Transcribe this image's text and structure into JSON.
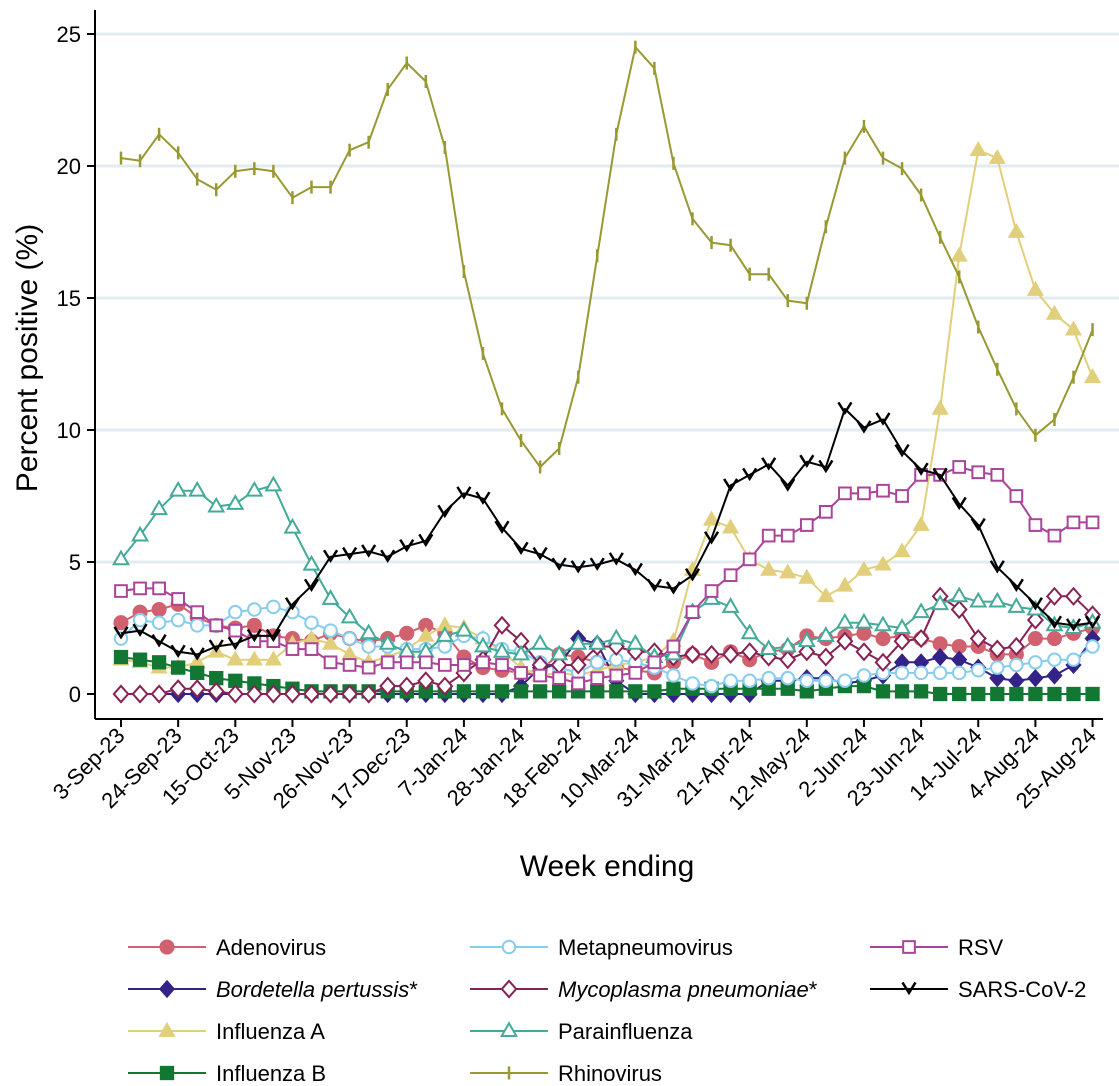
{
  "chart_data": {
    "type": "line",
    "xlabel": "Week ending",
    "ylabel": "Percent positive (%)",
    "ylim": [
      0,
      26
    ],
    "y_ticks": [
      0,
      5,
      10,
      15,
      20,
      25
    ],
    "grid": "horizontal",
    "legend_position": "bottom",
    "x": [
      "3-Sep-23",
      "10-Sep-23",
      "17-Sep-23",
      "24-Sep-23",
      "1-Oct-23",
      "8-Oct-23",
      "15-Oct-23",
      "22-Oct-23",
      "29-Oct-23",
      "5-Nov-23",
      "12-Nov-23",
      "19-Nov-23",
      "26-Nov-23",
      "3-Dec-23",
      "10-Dec-23",
      "17-Dec-23",
      "24-Dec-23",
      "31-Dec-23",
      "7-Jan-24",
      "14-Jan-24",
      "21-Jan-24",
      "28-Jan-24",
      "4-Feb-24",
      "11-Feb-24",
      "18-Feb-24",
      "25-Feb-24",
      "3-Mar-24",
      "10-Mar-24",
      "17-Mar-24",
      "24-Mar-24",
      "31-Mar-24",
      "7-Apr-24",
      "14-Apr-24",
      "21-Apr-24",
      "28-Apr-24",
      "5-May-24",
      "12-May-24",
      "19-May-24",
      "26-May-24",
      "2-Jun-24",
      "9-Jun-24",
      "16-Jun-24",
      "23-Jun-24",
      "30-Jun-24",
      "7-Jul-24",
      "14-Jul-24",
      "21-Jul-24",
      "28-Jul-24",
      "4-Aug-24",
      "11-Aug-24",
      "18-Aug-24",
      "25-Aug-24"
    ],
    "x_tick_labels": [
      "3-Sep-23",
      "24-Sep-23",
      "15-Oct-23",
      "5-Nov-23",
      "26-Nov-23",
      "17-Dec-23",
      "7-Jan-24",
      "28-Jan-24",
      "18-Feb-24",
      "10-Mar-24",
      "31-Mar-24",
      "21-Apr-24",
      "12-May-24",
      "2-Jun-24",
      "23-Jun-24",
      "14-Jul-24",
      "4-Aug-24",
      "25-Aug-24"
    ],
    "series": [
      {
        "name": "Adenovirus",
        "color": "#d1616e",
        "marker": "circle",
        "values": [
          2.7,
          3.1,
          3.2,
          3.4,
          2.9,
          2.6,
          2.5,
          2.6,
          2.2,
          2.1,
          2.0,
          2.3,
          2.1,
          2.0,
          2.1,
          2.3,
          2.6,
          2.3,
          1.4,
          1.0,
          0.9,
          0.8,
          0.9,
          1.5,
          1.4,
          1.2,
          1.0,
          0.9,
          0.8,
          1.2,
          1.5,
          1.2,
          1.6,
          1.3,
          1.6,
          1.7,
          2.2,
          2.1,
          2.2,
          2.3,
          2.1,
          2.2,
          2.1,
          1.9,
          1.8,
          1.8,
          1.5,
          1.5,
          2.1,
          2.1,
          2.3,
          2.5
        ]
      },
      {
        "name": "Bordetella pertussis*",
        "color": "#332288",
        "marker": "diamond",
        "values": [
          0,
          0,
          0,
          0,
          0,
          0,
          0,
          0,
          0,
          0,
          0,
          0,
          0,
          0,
          0,
          0,
          0,
          0,
          0,
          0,
          0,
          0.3,
          1.0,
          1.1,
          2.1,
          1.9,
          0.5,
          0,
          0,
          0,
          0,
          0,
          0,
          0,
          0.5,
          0.5,
          0.6,
          0.6,
          0.4,
          0.5,
          0.7,
          1.2,
          1.2,
          1.4,
          1.3,
          1.0,
          0.6,
          0.5,
          0.6,
          0.7,
          1.1,
          2.1
        ]
      },
      {
        "name": "Influenza A",
        "color": "#e2cf7b",
        "marker": "triangle",
        "values": [
          1.3,
          1.2,
          1.0,
          1.0,
          1.2,
          1.6,
          1.3,
          1.3,
          1.3,
          1.9,
          2.1,
          1.9,
          1.5,
          1.2,
          1.4,
          1.7,
          2.2,
          2.6,
          2.5,
          2.1,
          1.6,
          1.0,
          0.7,
          0.8,
          0.7,
          0.9,
          1.1,
          1.2,
          1.4,
          2.0,
          4.7,
          6.6,
          6.3,
          5.1,
          4.7,
          4.6,
          4.4,
          3.7,
          4.1,
          4.7,
          4.9,
          5.4,
          6.4,
          10.8,
          16.6,
          20.6,
          20.3,
          17.5,
          15.3,
          14.4,
          13.8,
          12.0
        ]
      },
      {
        "name": "Influenza B",
        "color": "#117733",
        "marker": "square",
        "values": [
          1.4,
          1.3,
          1.2,
          1.0,
          0.8,
          0.6,
          0.5,
          0.4,
          0.3,
          0.2,
          0.1,
          0.1,
          0.1,
          0.1,
          0.1,
          0.1,
          0.1,
          0.1,
          0.1,
          0.1,
          0.1,
          0.1,
          0.1,
          0.1,
          0.1,
          0.1,
          0.1,
          0.1,
          0.1,
          0.2,
          0.2,
          0.2,
          0.2,
          0.2,
          0.2,
          0.2,
          0.1,
          0.2,
          0.3,
          0.3,
          0.1,
          0.1,
          0.1,
          0,
          0,
          0,
          0,
          0,
          0,
          0,
          0,
          0
        ]
      },
      {
        "name": "Metapneumovirus",
        "color": "#88ccee",
        "marker": "circle-open",
        "values": [
          2.1,
          2.8,
          2.7,
          2.8,
          2.6,
          2.6,
          3.1,
          3.2,
          3.3,
          3.1,
          2.7,
          2.4,
          2.1,
          1.8,
          1.8,
          1.7,
          1.7,
          1.8,
          2.2,
          2.1,
          1.7,
          1.6,
          1.2,
          1.0,
          0.8,
          1.2,
          1.3,
          1.2,
          1.0,
          0.7,
          0.4,
          0.3,
          0.5,
          0.5,
          0.6,
          0.6,
          0.5,
          0.5,
          0.5,
          0.7,
          0.8,
          0.8,
          0.8,
          0.8,
          0.8,
          0.9,
          1.0,
          1.1,
          1.2,
          1.3,
          1.3,
          1.8
        ]
      },
      {
        "name": "Mycoplasma pneumoniae*",
        "color": "#882255",
        "marker": "diamond-open",
        "values": [
          0,
          0,
          0,
          0.2,
          0.2,
          0.1,
          0,
          0,
          0,
          0,
          0,
          0,
          0,
          0,
          0.3,
          0.3,
          0.5,
          0.3,
          0.8,
          1.3,
          2.6,
          2.0,
          1.1,
          1.1,
          1.1,
          1.8,
          1.8,
          1.6,
          1.6,
          1.4,
          1.5,
          1.5,
          1.5,
          1.6,
          1.4,
          1.3,
          1.6,
          1.4,
          2.0,
          1.6,
          1.2,
          2.0,
          2.1,
          3.7,
          3.2,
          2.1,
          1.7,
          1.8,
          2.8,
          3.7,
          3.7,
          3.0
        ]
      },
      {
        "name": "Parainfluenza",
        "color": "#44aa99",
        "marker": "triangle-open",
        "values": [
          5.1,
          6.0,
          7.0,
          7.7,
          7.7,
          7.1,
          7.2,
          7.7,
          7.9,
          6.3,
          4.9,
          3.6,
          2.9,
          2.3,
          1.9,
          1.6,
          1.6,
          2.2,
          2.4,
          1.8,
          1.6,
          1.5,
          1.9,
          1.5,
          1.9,
          1.9,
          2.1,
          1.9,
          1.4,
          1.5,
          3.1,
          3.6,
          3.3,
          2.3,
          1.7,
          1.8,
          2.0,
          2.2,
          2.7,
          2.7,
          2.6,
          2.5,
          3.1,
          3.4,
          3.7,
          3.5,
          3.5,
          3.3,
          3.2,
          2.6,
          2.5,
          2.7
        ]
      },
      {
        "name": "Rhinovirus",
        "color": "#999933",
        "marker": "bar",
        "values": [
          20.3,
          20.2,
          21.2,
          20.5,
          19.5,
          19.1,
          19.8,
          19.9,
          19.8,
          18.8,
          19.2,
          19.2,
          20.6,
          20.9,
          22.9,
          23.9,
          23.2,
          20.7,
          16.0,
          12.9,
          10.8,
          9.6,
          8.6,
          9.3,
          12.0,
          16.6,
          21.2,
          24.5,
          23.7,
          20.1,
          18.0,
          17.1,
          17.0,
          15.9,
          15.9,
          14.9,
          14.8,
          17.7,
          20.3,
          21.5,
          20.3,
          19.9,
          18.9,
          17.3,
          15.8,
          13.9,
          12.3,
          10.8,
          9.8,
          10.4,
          12.0,
          13.8
        ]
      },
      {
        "name": "RSV",
        "color": "#aa4499",
        "marker": "square-open",
        "values": [
          3.9,
          4.0,
          4.0,
          3.6,
          3.1,
          2.6,
          2.4,
          2.0,
          2.0,
          1.7,
          1.7,
          1.2,
          1.1,
          1.0,
          1.2,
          1.2,
          1.2,
          1.1,
          1.1,
          1.2,
          1.1,
          0.8,
          0.7,
          0.6,
          0.4,
          0.6,
          0.7,
          0.8,
          1.2,
          1.8,
          3.1,
          3.9,
          4.5,
          5.1,
          6.0,
          6.0,
          6.4,
          6.9,
          7.6,
          7.6,
          7.7,
          7.5,
          8.3,
          8.3,
          8.6,
          8.4,
          8.3,
          7.5,
          6.4,
          6.0,
          6.5,
          6.5
        ]
      },
      {
        "name": "SARS-CoV-2",
        "color": "#000000",
        "marker": "v",
        "values": [
          2.3,
          2.4,
          2.0,
          1.6,
          1.5,
          1.8,
          1.9,
          2.2,
          2.2,
          3.4,
          4.1,
          5.2,
          5.3,
          5.4,
          5.2,
          5.6,
          5.8,
          6.9,
          7.6,
          7.4,
          6.3,
          5.5,
          5.3,
          4.9,
          4.8,
          4.9,
          5.1,
          4.7,
          4.1,
          4.0,
          4.5,
          5.9,
          7.9,
          8.3,
          8.7,
          7.9,
          8.8,
          8.6,
          10.8,
          10.1,
          10.4,
          9.2,
          8.5,
          8.3,
          7.2,
          6.4,
          4.8,
          4.1,
          3.4,
          2.7,
          2.6,
          2.7
        ]
      }
    ]
  }
}
